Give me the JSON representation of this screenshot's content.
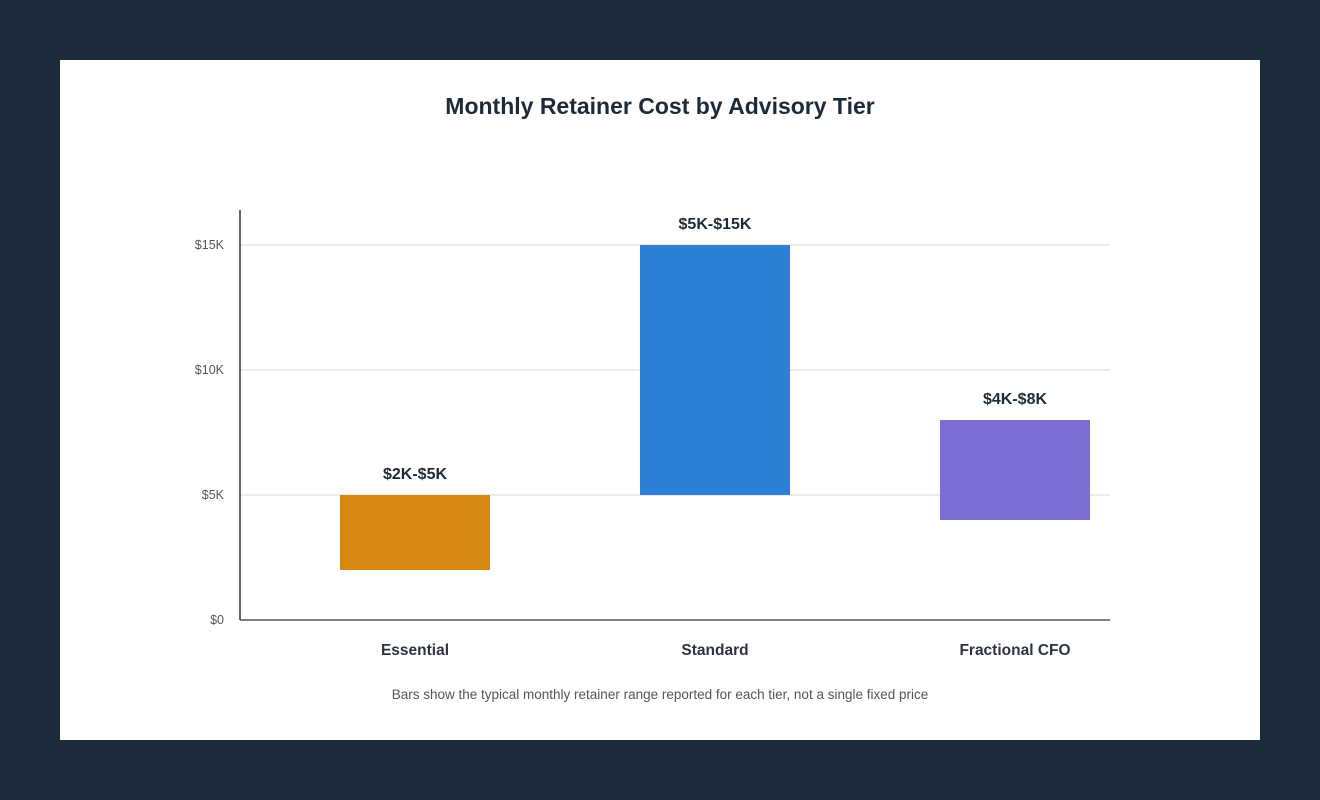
{
  "chart_data": {
    "type": "bar",
    "title": "Monthly Retainer Cost by Advisory Tier",
    "note": "Bars show the typical monthly retainer range reported for each tier, not a single fixed price",
    "xlabel": "",
    "ylabel": "",
    "ylim": [
      0,
      16000
    ],
    "yticks": [
      {
        "value": 0,
        "label": "$0"
      },
      {
        "value": 5000,
        "label": "$5K"
      },
      {
        "value": 10000,
        "label": "$10K"
      },
      {
        "value": 15000,
        "label": "$15K"
      }
    ],
    "grid": true,
    "categories": [
      "Essential",
      "Standard",
      "Fractional CFO"
    ],
    "ranges": [
      {
        "low": 2000,
        "high": 5000,
        "label": "$2K-$5K",
        "color": "#d68810"
      },
      {
        "low": 5000,
        "high": 15000,
        "label": "$5K-$15K",
        "color": "#2e7fd7"
      },
      {
        "low": 4000,
        "high": 8000,
        "label": "$4K-$8K",
        "color": "#7b6fd4"
      }
    ]
  }
}
